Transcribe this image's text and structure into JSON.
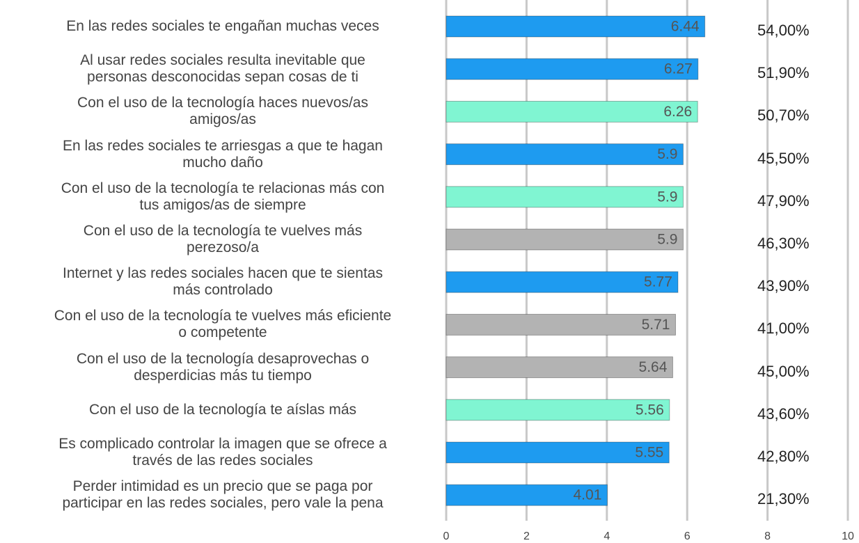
{
  "chart_data": {
    "type": "hbar",
    "categories": [
      "En las redes sociales te engañan muchas veces",
      "Al usar redes sociales resulta inevitable que\npersonas desconocidas sepan cosas de ti",
      "Con el uso de la tecnología haces nuevos/as\namigos/as",
      "En las redes sociales te arriesgas a que te hagan\nmucho daño",
      "Con el uso de la tecnología te relacionas más con\ntus amigos/as de siempre",
      "Con el uso de la tecnología te vuelves más\nperezoso/a",
      "Internet y las redes sociales hacen que te sientas\nmás controlado",
      "Con el uso de la tecnología te vuelves más eficiente\no competente",
      "Con el uso de la tecnología desaprovechas o\ndesperdicias más tu tiempo",
      "Con el uso de la tecnología te aíslas más",
      "Es complicado controlar la imagen que se ofrece a\ntravés de las redes sociales",
      "Perder intimidad es un precio que se paga por\nparticipar en las redes sociales, pero vale la pena"
    ],
    "values": [
      6.44,
      6.27,
      6.26,
      5.9,
      5.9,
      5.9,
      5.77,
      5.71,
      5.64,
      5.56,
      5.55,
      4.01
    ],
    "colors": [
      "#1e9bf0",
      "#1e9bf0",
      "#80f5d2",
      "#1e9bf0",
      "#80f5d2",
      "#b3b3b3",
      "#1e9bf0",
      "#b3b3b3",
      "#b3b3b3",
      "#80f5d2",
      "#1e9bf0",
      "#1e9bf0"
    ],
    "right_labels": [
      "54,00%",
      "51,90%",
      "50,70%",
      "45,50%",
      "47,90%",
      "46,30%",
      "43,90%",
      "41,00%",
      "45,00%",
      "43,60%",
      "42,80%",
      "21,30%"
    ],
    "xlim": [
      0,
      10
    ],
    "xticks": [
      0,
      2,
      4,
      6,
      8,
      10
    ],
    "grid": true
  }
}
